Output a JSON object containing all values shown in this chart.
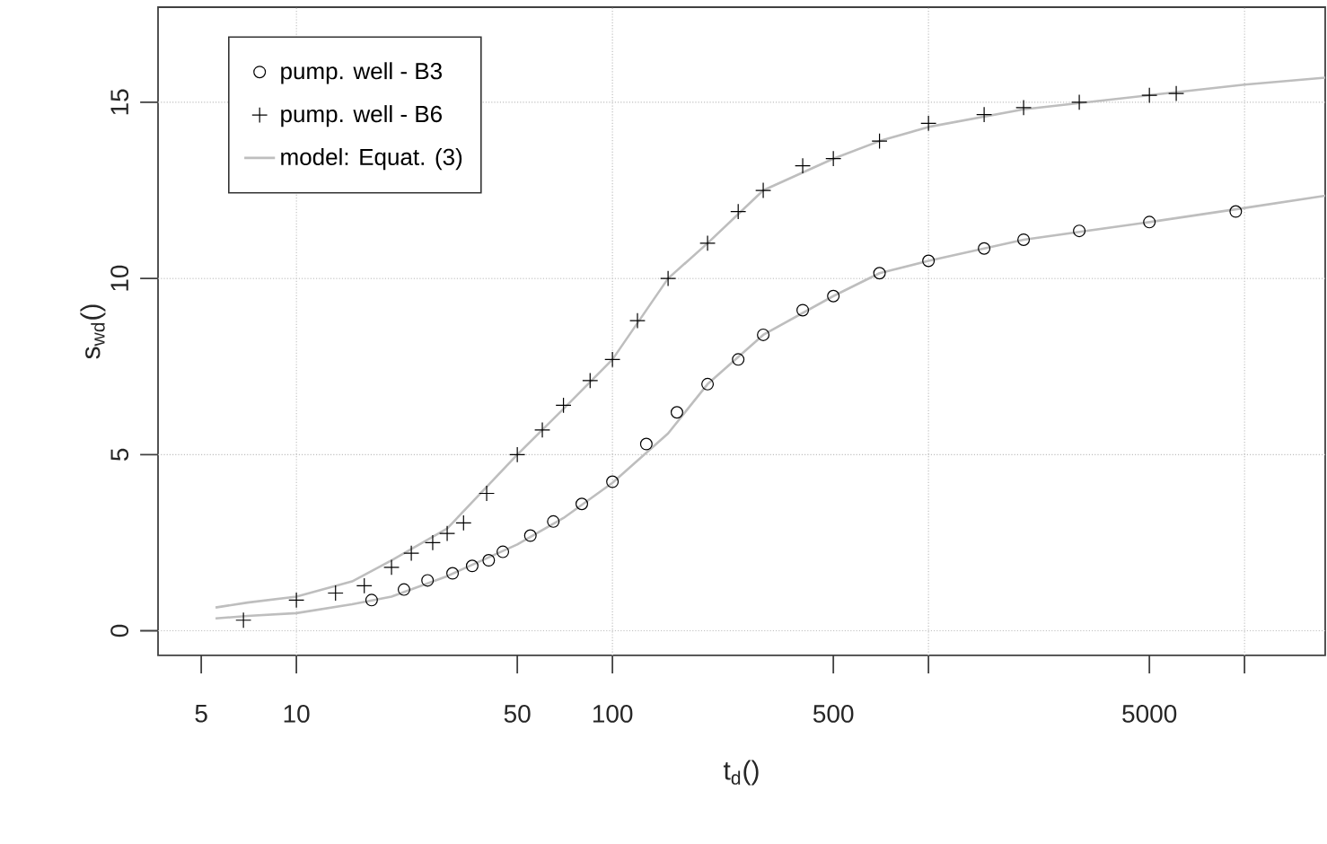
{
  "chart_data": {
    "type": "scatter",
    "xlabel": "t$_{d}$()",
    "ylabel": "s$_{wd}$()",
    "log": "x",
    "xlim": [
      3.65,
      18000
    ],
    "ylim": [
      -0.7,
      17.7
    ],
    "xticks": [
      5,
      10,
      50,
      100,
      500,
      {
        "value": 1000,
        "label": null
      },
      5000,
      {
        "value": 10000,
        "label": null
      }
    ],
    "yticks": [
      0,
      5,
      10,
      15
    ],
    "grid": true,
    "legend": "top left",
    "series": [
      {
        "name": "pump. well - B3",
        "color": "#000000",
        "marker": "circle",
        "x": [
          17.3,
          21.9,
          26,
          31.2,
          36,
          40.6,
          45,
          55,
          65,
          80,
          100,
          128,
          160,
          200,
          250,
          300,
          400,
          500,
          700,
          1000,
          1500,
          2000,
          3000,
          5000,
          9380
        ],
        "values": [
          0.87,
          1.17,
          1.43,
          1.63,
          1.84,
          2.0,
          2.24,
          2.7,
          3.1,
          3.6,
          4.23,
          5.3,
          6.2,
          7.0,
          7.7,
          8.4,
          9.1,
          9.5,
          10.15,
          10.5,
          10.85,
          11.1,
          11.35,
          11.6,
          11.9
        ]
      },
      {
        "name": "pump. well - B6",
        "color": "#000000",
        "marker": "cross",
        "x": [
          6.8,
          10,
          13.3,
          16.4,
          20,
          23.1,
          27,
          30,
          33.8,
          40,
          50,
          60,
          70,
          85,
          100,
          120,
          150,
          200,
          250,
          300,
          400,
          500,
          700,
          1000,
          1500,
          2000,
          3000,
          5000,
          6080
        ],
        "values": [
          0.3,
          0.87,
          1.07,
          1.28,
          1.8,
          2.2,
          2.5,
          2.76,
          3.06,
          3.9,
          5.0,
          5.7,
          6.4,
          7.1,
          7.7,
          8.8,
          10.0,
          11.0,
          11.9,
          12.5,
          13.2,
          13.4,
          13.9,
          14.4,
          14.65,
          14.85,
          15.0,
          15.2,
          15.25
        ]
      },
      {
        "name": "model: Equat. (3)",
        "type": "line",
        "color": "#bebebe",
        "marker": "none",
        "x": [
          5.55,
          7,
          10,
          15,
          20,
          30,
          50,
          70,
          100,
          150,
          200,
          300,
          500,
          700,
          1000,
          2000,
          5000,
          10000,
          18000
        ],
        "values": [
          0.66,
          0.8,
          0.97,
          1.4,
          2.0,
          2.9,
          5.0,
          6.3,
          7.7,
          10.0,
          11.0,
          12.5,
          13.4,
          13.9,
          14.3,
          14.8,
          15.2,
          15.5,
          15.7
        ]
      },
      {
        "type": "line",
        "color": "#bebebe",
        "marker": "none",
        "x": [
          5.55,
          7,
          10,
          15,
          20,
          30,
          50,
          70,
          100,
          150,
          200,
          300,
          500,
          700,
          1000,
          2000,
          5000,
          10000,
          18000
        ],
        "values": [
          0.35,
          0.42,
          0.5,
          0.75,
          0.97,
          1.55,
          2.45,
          3.2,
          4.2,
          5.6,
          7.0,
          8.4,
          9.5,
          10.15,
          10.5,
          11.1,
          11.6,
          12.0,
          12.35
        ]
      }
    ]
  }
}
